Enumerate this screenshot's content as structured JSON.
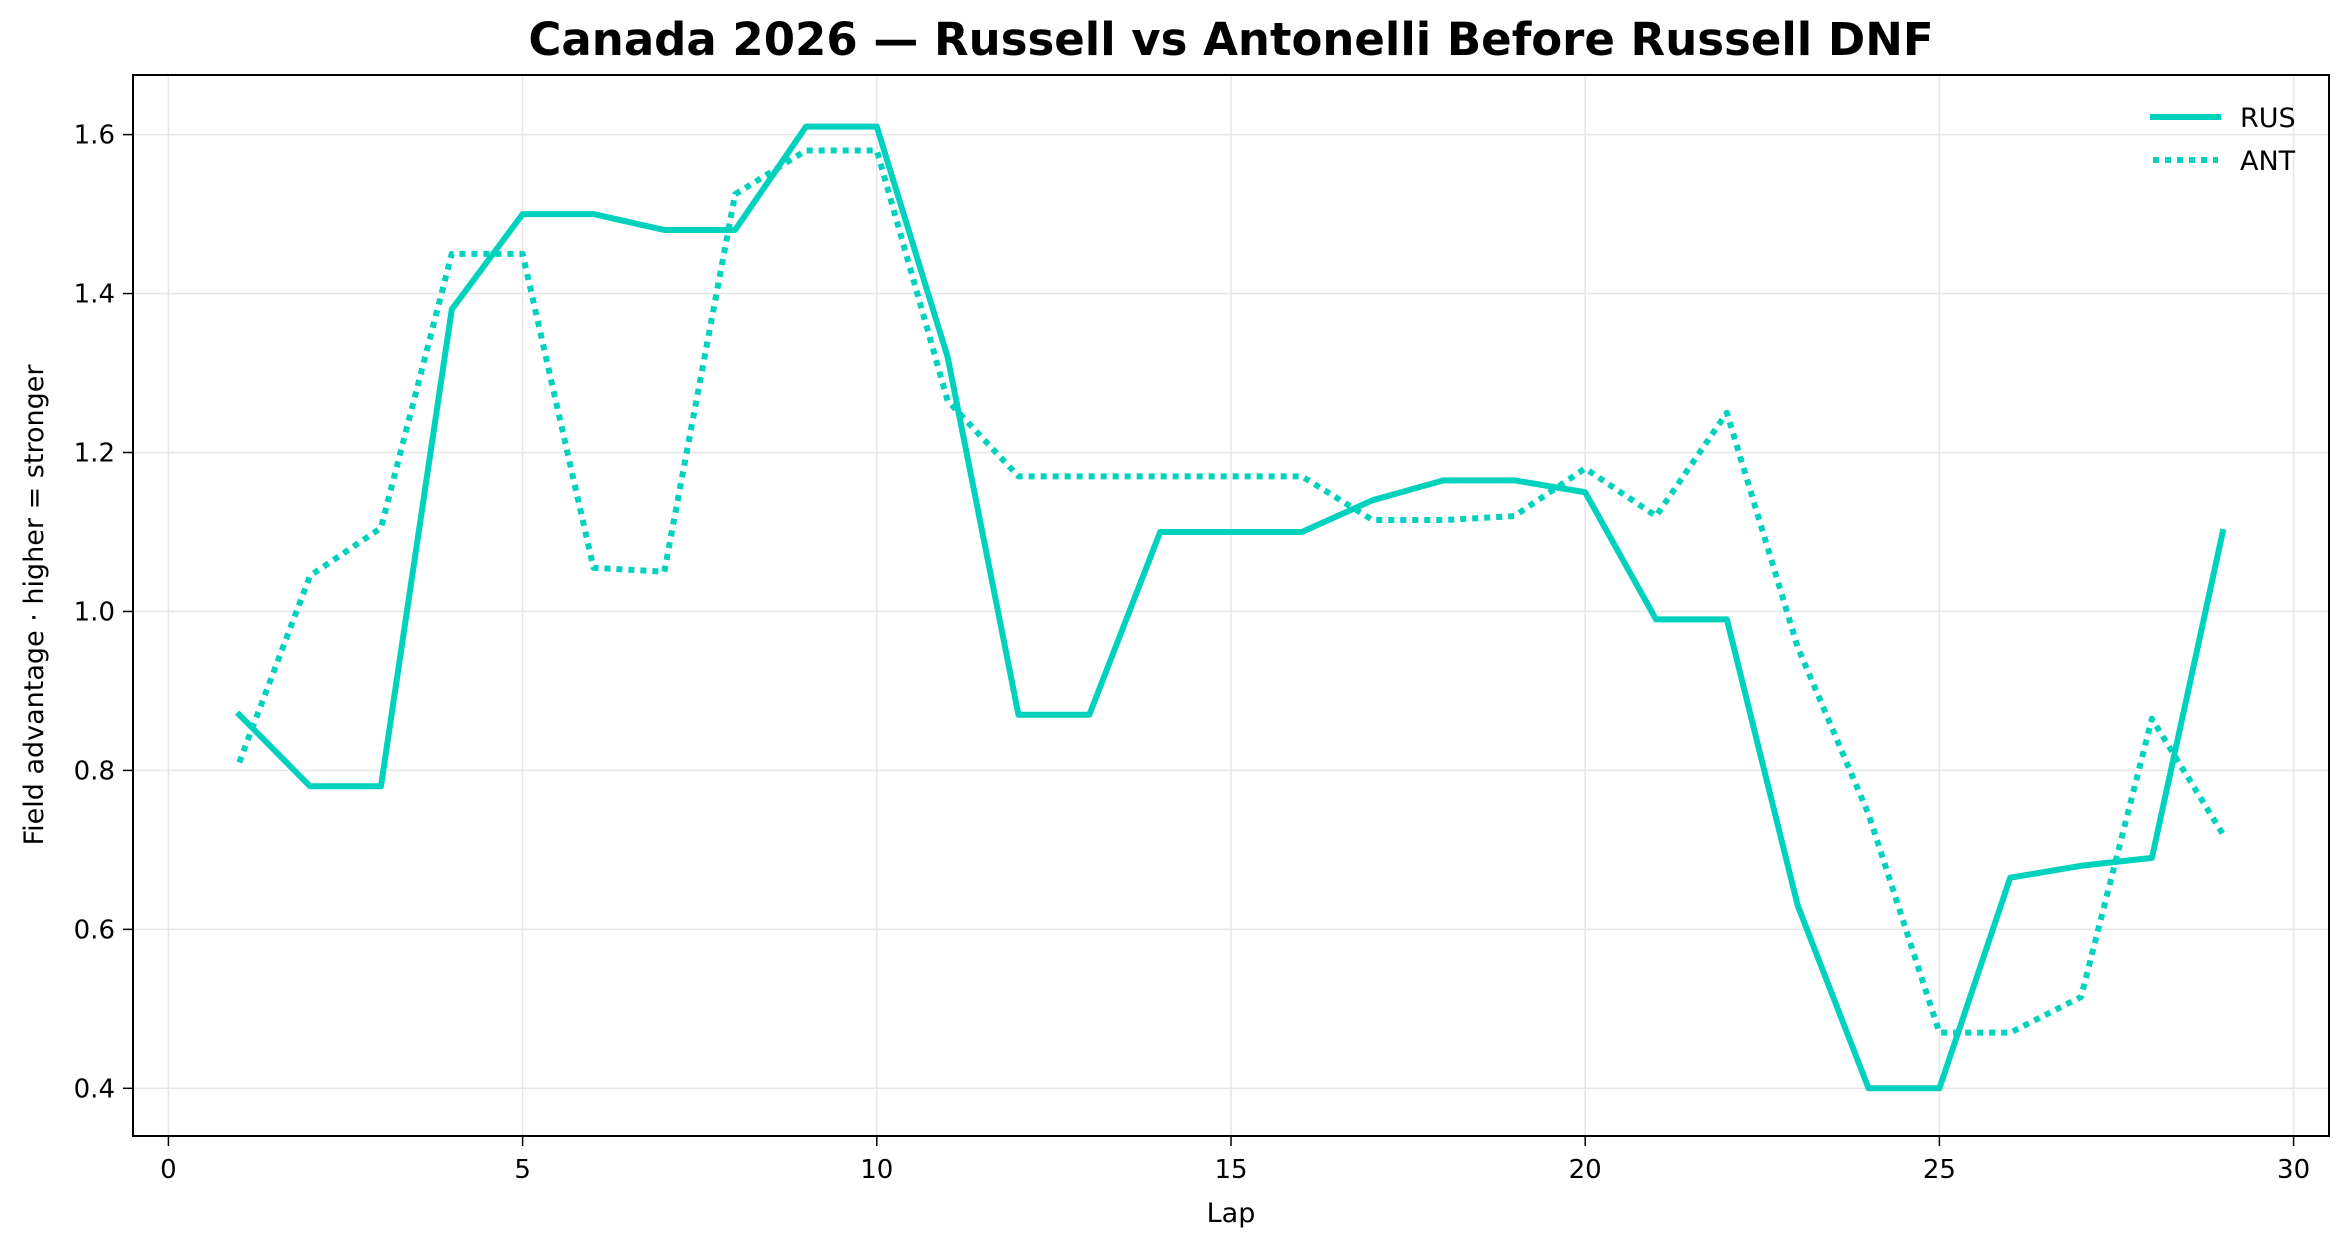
{
  "chart_data": {
    "type": "line",
    "title": "Canada 2026 — Russell vs Antonelli Before Russell DNF",
    "xlabel": "Lap",
    "ylabel": "Field advantage · higher = stronger",
    "xlim": [
      -0.5,
      30.5
    ],
    "ylim": [
      0.34,
      1.675
    ],
    "xticks": [
      0,
      5,
      10,
      15,
      20,
      25,
      30
    ],
    "yticks": [
      0.4,
      0.6,
      0.8,
      1.0,
      1.2,
      1.4,
      1.6
    ],
    "xtick_labels": [
      "0",
      "5",
      "10",
      "15",
      "20",
      "25",
      "30"
    ],
    "ytick_labels": [
      "0.4",
      "0.6",
      "0.8",
      "1.0",
      "1.2",
      "1.4",
      "1.6"
    ],
    "grid": true,
    "legend": "upper right",
    "x": [
      1,
      2,
      3,
      4,
      5,
      6,
      7,
      8,
      9,
      10,
      11,
      12,
      13,
      14,
      15,
      16,
      17,
      18,
      19,
      20,
      21,
      22,
      23,
      24,
      25,
      26,
      27,
      28,
      29
    ],
    "series": [
      {
        "name": "RUS",
        "color": "#00d2be",
        "style": "solid",
        "values": [
          0.87,
          0.78,
          0.78,
          1.38,
          1.5,
          1.5,
          1.48,
          1.48,
          1.61,
          1.61,
          1.32,
          0.87,
          0.87,
          1.1,
          1.1,
          1.1,
          1.14,
          1.165,
          1.165,
          1.15,
          0.99,
          0.99,
          0.63,
          0.4,
          0.4,
          0.665,
          0.68,
          0.69,
          1.1
        ]
      },
      {
        "name": "ANT",
        "color": "#00d2be",
        "style": "dotted",
        "values": [
          0.81,
          1.045,
          1.105,
          1.45,
          1.45,
          1.055,
          1.05,
          1.525,
          1.58,
          1.58,
          1.265,
          1.17,
          1.17,
          1.17,
          1.17,
          1.17,
          1.115,
          1.115,
          1.12,
          1.18,
          1.12,
          1.25,
          0.955,
          0.745,
          0.47,
          0.47,
          0.515,
          0.865,
          0.72
        ]
      }
    ]
  }
}
